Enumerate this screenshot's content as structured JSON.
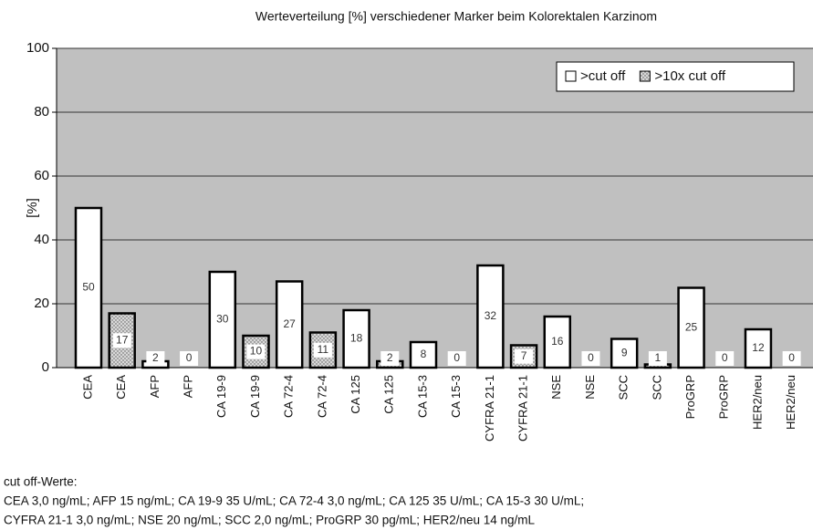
{
  "chart_data": {
    "type": "bar",
    "title": "Werteverteilung [%] verschiedener Marker beim Kolorektalen Karzinom",
    "y_label": "[%]",
    "categories": [
      "CEA",
      "CEA",
      "AFP",
      "AFP",
      "CA 19-9",
      "CA 19-9",
      "CA 72-4",
      "CA 72-4",
      "CA 125",
      "CA 125",
      "CA 15-3",
      "CA 15-3",
      "CYFRA 21-1",
      "CYFRA 21-1",
      "NSE",
      "NSE",
      "SCC",
      "SCC",
      "ProGRP",
      "ProGRP",
      "HER2/neu",
      "HER2/neu"
    ],
    "series": [
      {
        "name": ">cut off",
        "color": "#ffffff",
        "values": [
          50,
          null,
          2,
          null,
          30,
          null,
          27,
          null,
          18,
          null,
          8,
          null,
          32,
          null,
          16,
          null,
          9,
          null,
          25,
          null,
          12,
          null
        ]
      },
      {
        "name": ">10x cut off",
        "color": "#d8d8d8",
        "values": [
          null,
          17,
          null,
          0,
          null,
          10,
          null,
          11,
          null,
          2,
          null,
          0,
          null,
          7,
          null,
          0,
          null,
          1,
          null,
          0,
          null,
          0
        ]
      }
    ],
    "ylim": [
      0,
      100
    ],
    "yticks": [
      0,
      20,
      40,
      60,
      80,
      100
    ],
    "grid": true,
    "legend": "top-right",
    "footnote": [
      "cut off-Werte:",
      "CEA  3,0 ng/mL; AFP 15 ng/mL; CA 19-9  35 U/mL; CA 72-4  3,0 ng/mL; CA 125  35 U/mL; CA 15-3  30 U/mL;",
      "CYFRA 21-1  3,0 ng/mL; NSE 20 ng/mL; SCC 2,0 ng/mL; ProGRP 30 pg/mL; HER2/neu 14 ng/mL"
    ]
  }
}
